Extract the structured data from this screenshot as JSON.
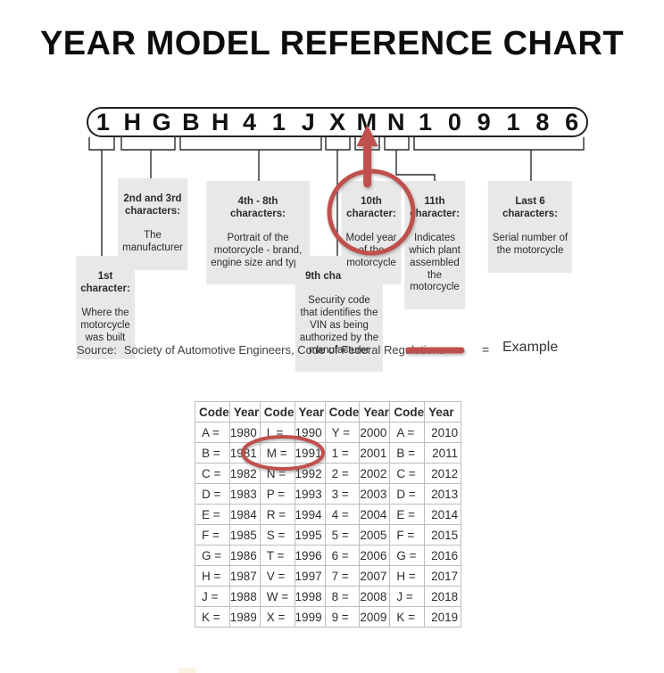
{
  "title": "YEAR MODEL REFERENCE CHART",
  "vin": {
    "value": "1HGBH41JXMN109186",
    "characters": [
      "1",
      "H",
      "G",
      "B",
      "H",
      "4",
      "1",
      "J",
      "X",
      "M",
      "N",
      "1",
      "0",
      "9",
      "1",
      "8",
      "6"
    ]
  },
  "callouts": {
    "first": {
      "heading": "1st\ncharacter:",
      "body": "Where the\nmotorcycle\nwas built"
    },
    "second_third": {
      "heading": "2nd and 3rd\ncharacters:",
      "body": "The\nmanufacturer"
    },
    "fourth_eighth": {
      "heading": "4th - 8th\ncharacters:",
      "body": "Portrait of the\nmotorcycle - brand,\nengine size and type"
    },
    "ninth": {
      "heading": "9th character:",
      "body": "Security code\nthat identifies the\nVIN as being\nauthorized by the\nmanufacturer"
    },
    "tenth": {
      "heading": "10th\ncharacter:",
      "body": "Model year\nof the\nmotorcycle"
    },
    "eleventh": {
      "heading": "11th\ncharacter:",
      "body": "Indicates\nwhich plant\nassembled\nthe\nmotorcycle"
    },
    "last_six": {
      "heading": "Last 6\ncharacters:",
      "body": "Serial number of\nthe motorcycle"
    }
  },
  "source_line": {
    "label": "Source:",
    "text": "Society of Automotive Engineers, Code of Federal Regulations"
  },
  "legend": {
    "equals_sign": "=",
    "label": "Example"
  },
  "colors": {
    "accent_red": "#c0504d",
    "callout_bg": "#e8e8e8",
    "line": "#2a2a2a"
  },
  "year_table": {
    "headers": [
      "Code",
      "Year",
      "Code",
      "Year",
      "Code",
      "Year",
      "Code",
      "Year"
    ],
    "rows": [
      [
        "A =",
        "1980",
        "L =",
        "1990",
        "Y =",
        "2000",
        "A =",
        "2010"
      ],
      [
        "B =",
        "1981",
        "M =",
        "1991",
        "1 =",
        "2001",
        "B =",
        "2011"
      ],
      [
        "C =",
        "1982",
        "N =",
        "1992",
        "2 =",
        "2002",
        "C =",
        "2012"
      ],
      [
        "D =",
        "1983",
        "P =",
        "1993",
        "3 =",
        "2003",
        "D =",
        "2013"
      ],
      [
        "E =",
        "1984",
        "R =",
        "1994",
        "4 =",
        "2004",
        "E =",
        "2014"
      ],
      [
        "F =",
        "1985",
        "S =",
        "1995",
        "5 =",
        "2005",
        "F =",
        "2015"
      ],
      [
        "G =",
        "1986",
        "T =",
        "1996",
        "6 =",
        "2006",
        "G =",
        "2016"
      ],
      [
        "H =",
        "1987",
        "V =",
        "1997",
        "7 =",
        "2007",
        "H =",
        "2017"
      ],
      [
        "J =",
        "1988",
        "W =",
        "1998",
        "8 =",
        "2008",
        "J =",
        "2018"
      ],
      [
        "K =",
        "1989",
        "X =",
        "1999",
        "9 =",
        "2009",
        "K =",
        "2019"
      ]
    ],
    "highlighted_cells": [
      "M =",
      "1991"
    ]
  }
}
